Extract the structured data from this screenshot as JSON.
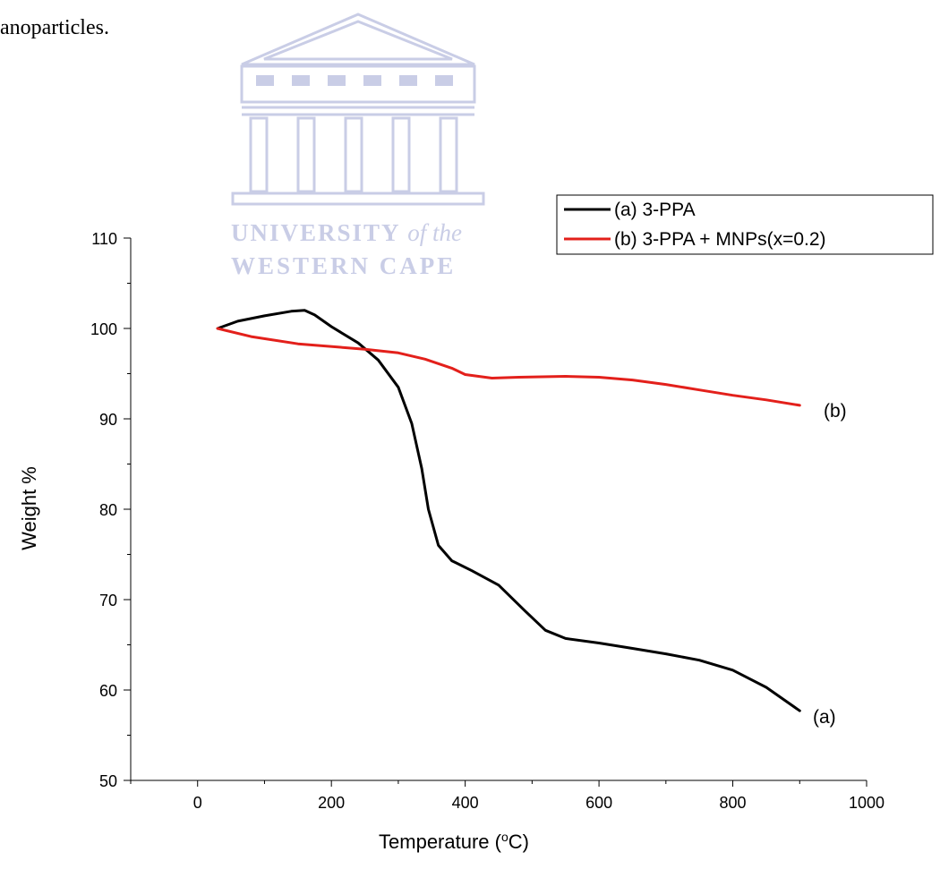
{
  "page": {
    "snippet_text": "anoparticles.",
    "watermark": {
      "line1_main": "UNIVERSITY",
      "line1_italic": "of the",
      "line2": "WESTERN CAPE"
    }
  },
  "chart_data": {
    "type": "line",
    "title": "",
    "xlabel": "Temperature (°C)",
    "ylabel": "Weight %",
    "xlim": [
      -100,
      1000
    ],
    "ylim": [
      50,
      110
    ],
    "xticks": [
      0,
      200,
      400,
      600,
      800,
      1000
    ],
    "yticks": [
      50,
      60,
      70,
      80,
      90,
      100,
      110
    ],
    "grid": false,
    "legend_position": "top-right",
    "series": [
      {
        "name": "(a) 3-PPA",
        "annotation": "(a)",
        "color": "#000000",
        "points": [
          [
            30,
            100
          ],
          [
            60,
            100.8
          ],
          [
            100,
            101.4
          ],
          [
            140,
            101.9
          ],
          [
            160,
            102.0
          ],
          [
            175,
            101.5
          ],
          [
            200,
            100.2
          ],
          [
            240,
            98.4
          ],
          [
            270,
            96.5
          ],
          [
            300,
            93.5
          ],
          [
            320,
            89.5
          ],
          [
            335,
            84.5
          ],
          [
            345,
            80
          ],
          [
            360,
            76
          ],
          [
            380,
            74.3
          ],
          [
            410,
            73.2
          ],
          [
            450,
            71.6
          ],
          [
            490,
            68.7
          ],
          [
            520,
            66.6
          ],
          [
            550,
            65.7
          ],
          [
            600,
            65.2
          ],
          [
            650,
            64.6
          ],
          [
            700,
            64.0
          ],
          [
            750,
            63.3
          ],
          [
            800,
            62.2
          ],
          [
            850,
            60.3
          ],
          [
            900,
            57.7
          ]
        ]
      },
      {
        "name": "(b) 3-PPA + MNPs(x=0.2)",
        "annotation": "(b)",
        "color": "#e3201b",
        "points": [
          [
            30,
            100
          ],
          [
            80,
            99.1
          ],
          [
            150,
            98.3
          ],
          [
            250,
            97.7
          ],
          [
            300,
            97.3
          ],
          [
            340,
            96.6
          ],
          [
            380,
            95.6
          ],
          [
            400,
            94.9
          ],
          [
            440,
            94.5
          ],
          [
            480,
            94.6
          ],
          [
            550,
            94.7
          ],
          [
            600,
            94.6
          ],
          [
            650,
            94.3
          ],
          [
            700,
            93.8
          ],
          [
            750,
            93.2
          ],
          [
            800,
            92.6
          ],
          [
            850,
            92.1
          ],
          [
            900,
            91.5
          ]
        ]
      }
    ]
  }
}
